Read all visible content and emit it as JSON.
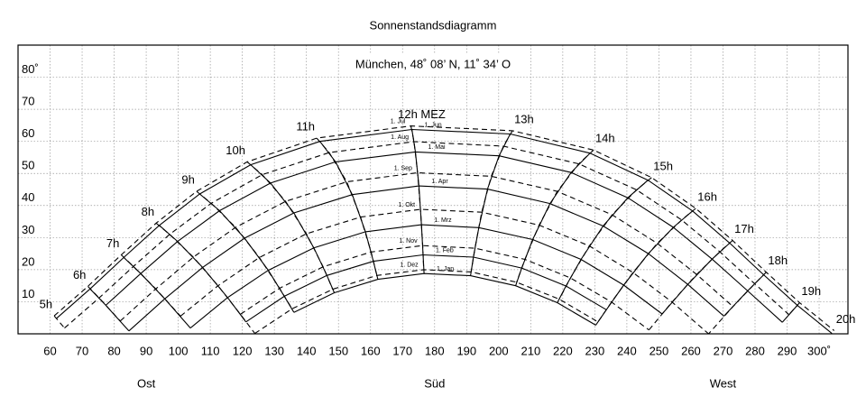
{
  "chart_data": {
    "type": "sunpath",
    "title": "Sonnenstandsdiagramm",
    "subtitle": "München, 48˚ 08’ N, 11˚ 34’ O",
    "color": "#000000",
    "grid": true,
    "xlim": [
      50,
      309
    ],
    "ylim": [
      0,
      90
    ],
    "xticks": [
      60,
      70,
      80,
      90,
      100,
      110,
      120,
      130,
      140,
      150,
      160,
      170,
      180,
      190,
      200,
      210,
      220,
      230,
      240,
      250,
      260,
      270,
      280,
      290,
      {
        "value": 300,
        "label": "300˚"
      }
    ],
    "yticks": [
      10,
      20,
      30,
      40,
      50,
      60,
      70,
      {
        "value": 80,
        "label": "80˚"
      }
    ],
    "directions": [
      {
        "value": 90,
        "label": "Ost"
      },
      {
        "value": 180,
        "label": "Süd"
      },
      {
        "value": 270,
        "label": "West"
      }
    ],
    "hours": [
      "5h",
      "6h",
      "7h",
      "8h",
      "9h",
      "10h",
      "11h",
      "12h MEZ",
      "13h",
      "14h",
      "15h",
      "16h",
      "17h",
      "18h",
      "19h",
      "20h"
    ],
    "series": [
      {
        "name": "1. Jul",
        "dashed": true,
        "x": [
          61.3,
          71.8,
          82.2,
          93.1,
          105.7,
          121.5,
          143.2,
          172.6,
          204.3,
          229.6,
          247.7,
          261.5,
          273.0,
          283.5,
          293.9,
          304.7
        ],
        "values": [
          5.6,
          14.8,
          24.6,
          34.5,
          44.4,
          53.6,
          61.0,
          64.8,
          63.3,
          57.3,
          48.7,
          39.1,
          29.1,
          19.2,
          9.7,
          1.0
        ]
      },
      {
        "name": "1. Jun",
        "dashed": false,
        "x": [
          62.0,
          72.5,
          83.0,
          94.1,
          106.7,
          122.6,
          144.2,
          172.9,
          203.6,
          228.5,
          246.6,
          260.5,
          272.1,
          282.7,
          293.2,
          304.0
        ],
        "values": [
          4.8,
          14.0,
          23.8,
          33.8,
          43.6,
          52.7,
          60.0,
          63.7,
          62.3,
          56.3,
          47.9,
          38.3,
          28.3,
          18.4,
          8.9,
          0.1
        ]
      },
      {
        "name": "1. Aug",
        "dashed": true,
        "x": [
          64.5,
          75.3,
          86.0,
          97.3,
          110.3,
          126.2,
          147.1,
          173.6,
          201.5,
          225.0,
          243.0,
          257.1,
          269.0,
          279.9,
          290.6,
          null
        ],
        "values": [
          1.8,
          11.2,
          21.0,
          31.0,
          40.7,
          49.6,
          56.5,
          59.9,
          58.5,
          53.0,
          44.9,
          35.5,
          25.6,
          15.6,
          6.0,
          null
        ]
      },
      {
        "name": "1. Mai",
        "dashed": false,
        "x": [
          null,
          77.4,
          88.3,
          99.8,
          112.9,
          128.8,
          149.1,
          174.0,
          200.1,
          222.6,
          240.3,
          254.5,
          266.6,
          277.7,
          288.5,
          null
        ],
        "values": [
          null,
          8.9,
          18.8,
          28.8,
          38.4,
          47.0,
          53.6,
          56.7,
          55.5,
          50.3,
          42.4,
          33.2,
          23.3,
          13.4,
          3.6,
          null
        ]
      },
      {
        "name": "1. Sep",
        "dashed": true,
        "x": [
          null,
          81.9,
          93.0,
          104.7,
          117.9,
          133.5,
          152.6,
          174.7,
          197.7,
          218.3,
          235.4,
          249.5,
          261.8,
          273.1,
          null,
          null
        ],
        "values": [
          null,
          4.0,
          14.0,
          23.9,
          33.2,
          41.3,
          47.4,
          50.2,
          49.1,
          44.4,
          37.1,
          28.2,
          18.5,
          8.5,
          null,
          null
        ]
      },
      {
        "name": "1. Apr",
        "dashed": false,
        "x": [
          null,
          84.6,
          95.8,
          107.6,
          120.7,
          136.1,
          154.3,
          175.1,
          196.5,
          216.0,
          232.6,
          246.7,
          259.0,
          270.3,
          null,
          null
        ],
        "values": [
          null,
          0.9,
          10.9,
          20.7,
          29.8,
          37.7,
          43.4,
          46.1,
          45.1,
          40.6,
          33.6,
          25.0,
          15.4,
          5.5,
          null,
          null
        ]
      },
      {
        "name": "1. Okt",
        "dashed": true,
        "x": [
          null,
          null,
          100.7,
          112.4,
          125.3,
          140.0,
          156.9,
          175.6,
          194.7,
          212.6,
          228.3,
          241.9,
          254.1,
          265.5,
          null,
          null
        ],
        "values": [
          null,
          null,
          5.5,
          15.0,
          23.8,
          31.2,
          36.4,
          38.8,
          37.9,
          33.9,
          27.4,
          19.1,
          9.9,
          0.0,
          null,
          null
        ]
      },
      {
        "name": "1. Mrz",
        "dashed": false,
        "x": [
          null,
          null,
          103.8,
          115.4,
          128.1,
          142.3,
          158.4,
          175.9,
          193.8,
          210.6,
          225.7,
          239.0,
          251.0,
          null,
          null,
          null
        ],
        "values": [
          null,
          null,
          1.8,
          11.3,
          19.8,
          26.8,
          31.8,
          34.0,
          33.1,
          29.4,
          23.2,
          15.2,
          6.2,
          null,
          null,
          null
        ]
      },
      {
        "name": "1. Nov",
        "dashed": true,
        "x": [
          null,
          null,
          null,
          119.4,
          131.6,
          145.2,
          160.2,
          176.3,
          192.6,
          208.2,
          222.4,
          235.2,
          246.9,
          null,
          null,
          null
        ],
        "values": [
          null,
          null,
          null,
          6.1,
          14.2,
          20.9,
          25.5,
          27.5,
          26.7,
          23.2,
          17.4,
          9.9,
          1.2,
          null,
          null,
          null
        ]
      },
      {
        "name": "1. Feb",
        "dashed": false,
        "x": [
          null,
          null,
          null,
          121.1,
          133.1,
          146.4,
          160.9,
          176.4,
          192.1,
          207.2,
          221.0,
          233.6,
          null,
          null,
          null,
          null
        ],
        "values": [
          null,
          null,
          null,
          3.7,
          11.7,
          18.2,
          22.6,
          24.6,
          23.9,
          20.5,
          14.9,
          7.5,
          null,
          null,
          null,
          null
        ]
      },
      {
        "name": "1. Dez",
        "dashed": true,
        "x": [
          null,
          null,
          null,
          123.9,
          135.5,
          148.2,
          162.0,
          176.6,
          191.4,
          205.6,
          218.9,
          231.0,
          null,
          null,
          null,
          null
        ],
        "values": [
          null,
          null,
          null,
          0.1,
          7.8,
          13.9,
          18.2,
          20.0,
          19.3,
          16.1,
          10.8,
          3.7,
          null,
          null,
          null,
          null
        ]
      },
      {
        "name": "1. Jan",
        "dashed": false,
        "x": [
          null,
          null,
          null,
          null,
          136.1,
          148.7,
          162.3,
          176.7,
          191.2,
          205.3,
          218.3,
          230.3,
          null,
          null,
          null,
          null
        ],
        "values": [
          null,
          null,
          null,
          null,
          6.7,
          12.8,
          17.0,
          18.8,
          18.1,
          15.0,
          9.7,
          2.7,
          null,
          null,
          null,
          null
        ]
      }
    ]
  }
}
